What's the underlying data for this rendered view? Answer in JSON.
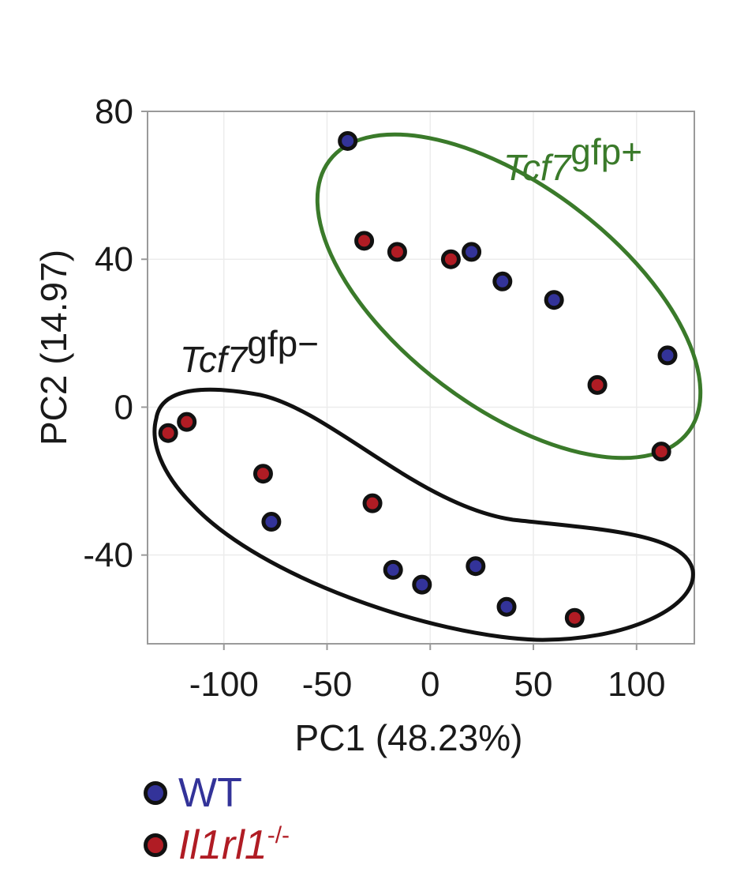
{
  "chart_data": {
    "type": "scatter",
    "xlabel": "PC1 (48.23%)",
    "ylabel": "PC2 (14.97)",
    "xticks": [
      -100,
      -50,
      0,
      50,
      100
    ],
    "yticks": [
      80,
      40,
      0,
      -40
    ],
    "xlim": [
      -137,
      128
    ],
    "ylim": [
      -64,
      80
    ],
    "grid": true,
    "legend_position": "bottom-left",
    "series": [
      {
        "name": "WT",
        "color": "#333399",
        "points": [
          {
            "x": -40,
            "y": 72
          },
          {
            "x": 20,
            "y": 42
          },
          {
            "x": 35,
            "y": 34
          },
          {
            "x": 60,
            "y": 29
          },
          {
            "x": 115,
            "y": 14
          },
          {
            "x": -77,
            "y": -31
          },
          {
            "x": -18,
            "y": -44
          },
          {
            "x": -4,
            "y": -48
          },
          {
            "x": 22,
            "y": -43
          },
          {
            "x": 37,
            "y": -54
          }
        ]
      },
      {
        "name": "Il1rl1-/-",
        "color": "#b01c24",
        "points": [
          {
            "x": -32,
            "y": 45
          },
          {
            "x": -16,
            "y": 42
          },
          {
            "x": 10,
            "y": 40
          },
          {
            "x": 81,
            "y": 6
          },
          {
            "x": 112,
            "y": -12
          },
          {
            "x": -127,
            "y": -7
          },
          {
            "x": -118,
            "y": -4
          },
          {
            "x": -81,
            "y": -18
          },
          {
            "x": -28,
            "y": -26
          },
          {
            "x": 70,
            "y": -57
          }
        ]
      }
    ],
    "annotations": [
      {
        "label": "Tcf7",
        "suffix": "gfp+",
        "color": "#3a7a2a"
      },
      {
        "label": "Tcf7",
        "suffix": "gfp−",
        "color": "#1a1a1a"
      }
    ]
  },
  "legend": {
    "wt_label": "WT",
    "ko_label_main": "Il1rl1",
    "ko_label_sup": "-/-",
    "wt_color": "#333399",
    "ko_color": "#b01c24"
  }
}
